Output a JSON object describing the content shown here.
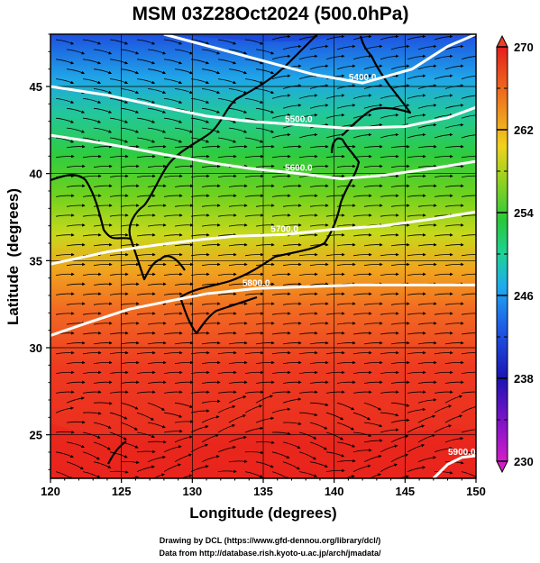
{
  "chart_data": {
    "type": "heatmap",
    "title": "MSM 03Z28Oct2024 (500.0hPa)",
    "xlabel": "Longitude (degrees)",
    "ylabel": "Latitude  (degrees)",
    "xlim": [
      120,
      150
    ],
    "ylim": [
      22.5,
      48
    ],
    "x_ticks": [
      120,
      125,
      130,
      135,
      140,
      145,
      150
    ],
    "y_ticks": [
      25,
      30,
      35,
      40,
      45
    ],
    "grid": true,
    "field": "temperature (shaded) with wind streamlines",
    "colorbar": {
      "min": 230,
      "max": 270,
      "ticks": [
        230,
        238,
        246,
        254,
        262,
        270
      ],
      "extend": "both"
    },
    "contours": [
      {
        "label": "5400.0",
        "points": [
          [
            128.0,
            48.0
          ],
          [
            133.5,
            46.8
          ],
          [
            138.5,
            45.7
          ],
          [
            142.0,
            45.2
          ],
          [
            145.5,
            46.0
          ],
          [
            148.0,
            47.3
          ],
          [
            150.0,
            48.0
          ]
        ]
      },
      {
        "label": "5500.0",
        "points": [
          [
            120.0,
            45.0
          ],
          [
            124.0,
            44.5
          ],
          [
            128.0,
            43.8
          ],
          [
            131.0,
            43.3
          ],
          [
            134.0,
            43.0
          ],
          [
            137.5,
            42.8
          ],
          [
            141.0,
            42.6
          ],
          [
            145.0,
            42.7
          ],
          [
            148.0,
            43.2
          ],
          [
            150.0,
            43.8
          ]
        ]
      },
      {
        "label": "5600.0",
        "points": [
          [
            120.0,
            42.2
          ],
          [
            124.0,
            41.7
          ],
          [
            128.0,
            41.1
          ],
          [
            131.5,
            40.6
          ],
          [
            134.0,
            40.3
          ],
          [
            137.5,
            40.0
          ],
          [
            140.5,
            39.7
          ],
          [
            143.5,
            39.9
          ],
          [
            147.0,
            40.3
          ],
          [
            150.0,
            40.7
          ]
        ]
      },
      {
        "label": "5700.0",
        "points": [
          [
            120.0,
            34.8
          ],
          [
            124.0,
            35.5
          ],
          [
            127.5,
            35.9
          ],
          [
            130.5,
            36.2
          ],
          [
            133.0,
            36.4
          ],
          [
            136.5,
            36.5
          ],
          [
            140.0,
            36.8
          ],
          [
            143.5,
            37.0
          ],
          [
            147.0,
            37.4
          ],
          [
            150.0,
            37.8
          ]
        ]
      },
      {
        "label": "5800.0",
        "points": [
          [
            120.0,
            30.7
          ],
          [
            122.5,
            31.4
          ],
          [
            125.5,
            32.2
          ],
          [
            128.5,
            32.7
          ],
          [
            131.0,
            33.1
          ],
          [
            134.5,
            33.4
          ],
          [
            138.0,
            33.5
          ],
          [
            141.5,
            33.6
          ],
          [
            145.0,
            33.6
          ],
          [
            150.0,
            33.6
          ]
        ]
      },
      {
        "label": "5900.0",
        "points": [
          [
            147.0,
            22.5
          ],
          [
            148.0,
            23.3
          ],
          [
            149.0,
            23.7
          ],
          [
            150.0,
            23.8
          ]
        ]
      }
    ]
  },
  "credits": [
    "Drawing by DCL (https://www.gfd-dennou.org/library/dcl/)",
    "Data from http://database.rish.kyoto-u.ac.jp/arch/jmadata/"
  ]
}
